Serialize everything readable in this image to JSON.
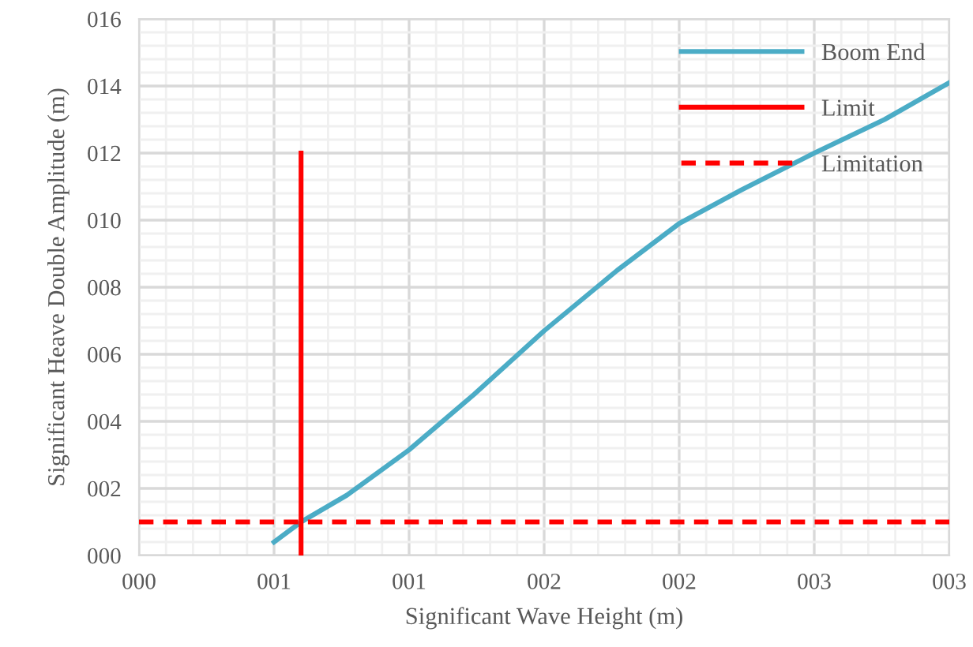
{
  "chart_data": {
    "type": "line",
    "xlabel": "Significant Wave Height (m)",
    "ylabel": "Significant Heave Double Amplitude (m)",
    "xlim": [
      0,
      3
    ],
    "ylim": [
      0,
      16
    ],
    "xticks": [
      {
        "value": 0,
        "label": "000"
      },
      {
        "value": 0.5,
        "label": "001"
      },
      {
        "value": 1,
        "label": "001"
      },
      {
        "value": 1.5,
        "label": "002"
      },
      {
        "value": 2,
        "label": "002"
      },
      {
        "value": 2.5,
        "label": "003"
      },
      {
        "value": 3,
        "label": "003"
      }
    ],
    "yticks": [
      {
        "value": 0,
        "label": "000"
      },
      {
        "value": 2,
        "label": "002"
      },
      {
        "value": 4,
        "label": "004"
      },
      {
        "value": 6,
        "label": "006"
      },
      {
        "value": 8,
        "label": "008"
      },
      {
        "value": 10,
        "label": "010"
      },
      {
        "value": 12,
        "label": "012"
      },
      {
        "value": 14,
        "label": "014"
      },
      {
        "value": 16,
        "label": "016"
      }
    ],
    "grid": true,
    "legend": "top right",
    "marker": "none",
    "series": [
      {
        "name": "Boom End",
        "color": "#4bacc6",
        "line_style": "solid",
        "x": [
          0.5,
          0.6,
          0.77,
          1.0,
          1.24,
          1.5,
          1.77,
          2.0,
          2.23,
          2.5,
          2.76,
          3.0
        ],
        "values": [
          0.4,
          1.0,
          1.8,
          3.15,
          4.8,
          6.7,
          8.5,
          9.9,
          10.9,
          12.0,
          13.0,
          14.1
        ]
      },
      {
        "name": "Limit",
        "color": "#ff0000",
        "line_style": "solid",
        "x": [
          0.6,
          0.6
        ],
        "values": [
          0,
          12
        ]
      },
      {
        "name": "Limitation",
        "color": "#ff0000",
        "line_style": "dashed",
        "x": [
          0,
          3
        ],
        "values": [
          1,
          1
        ]
      }
    ]
  }
}
